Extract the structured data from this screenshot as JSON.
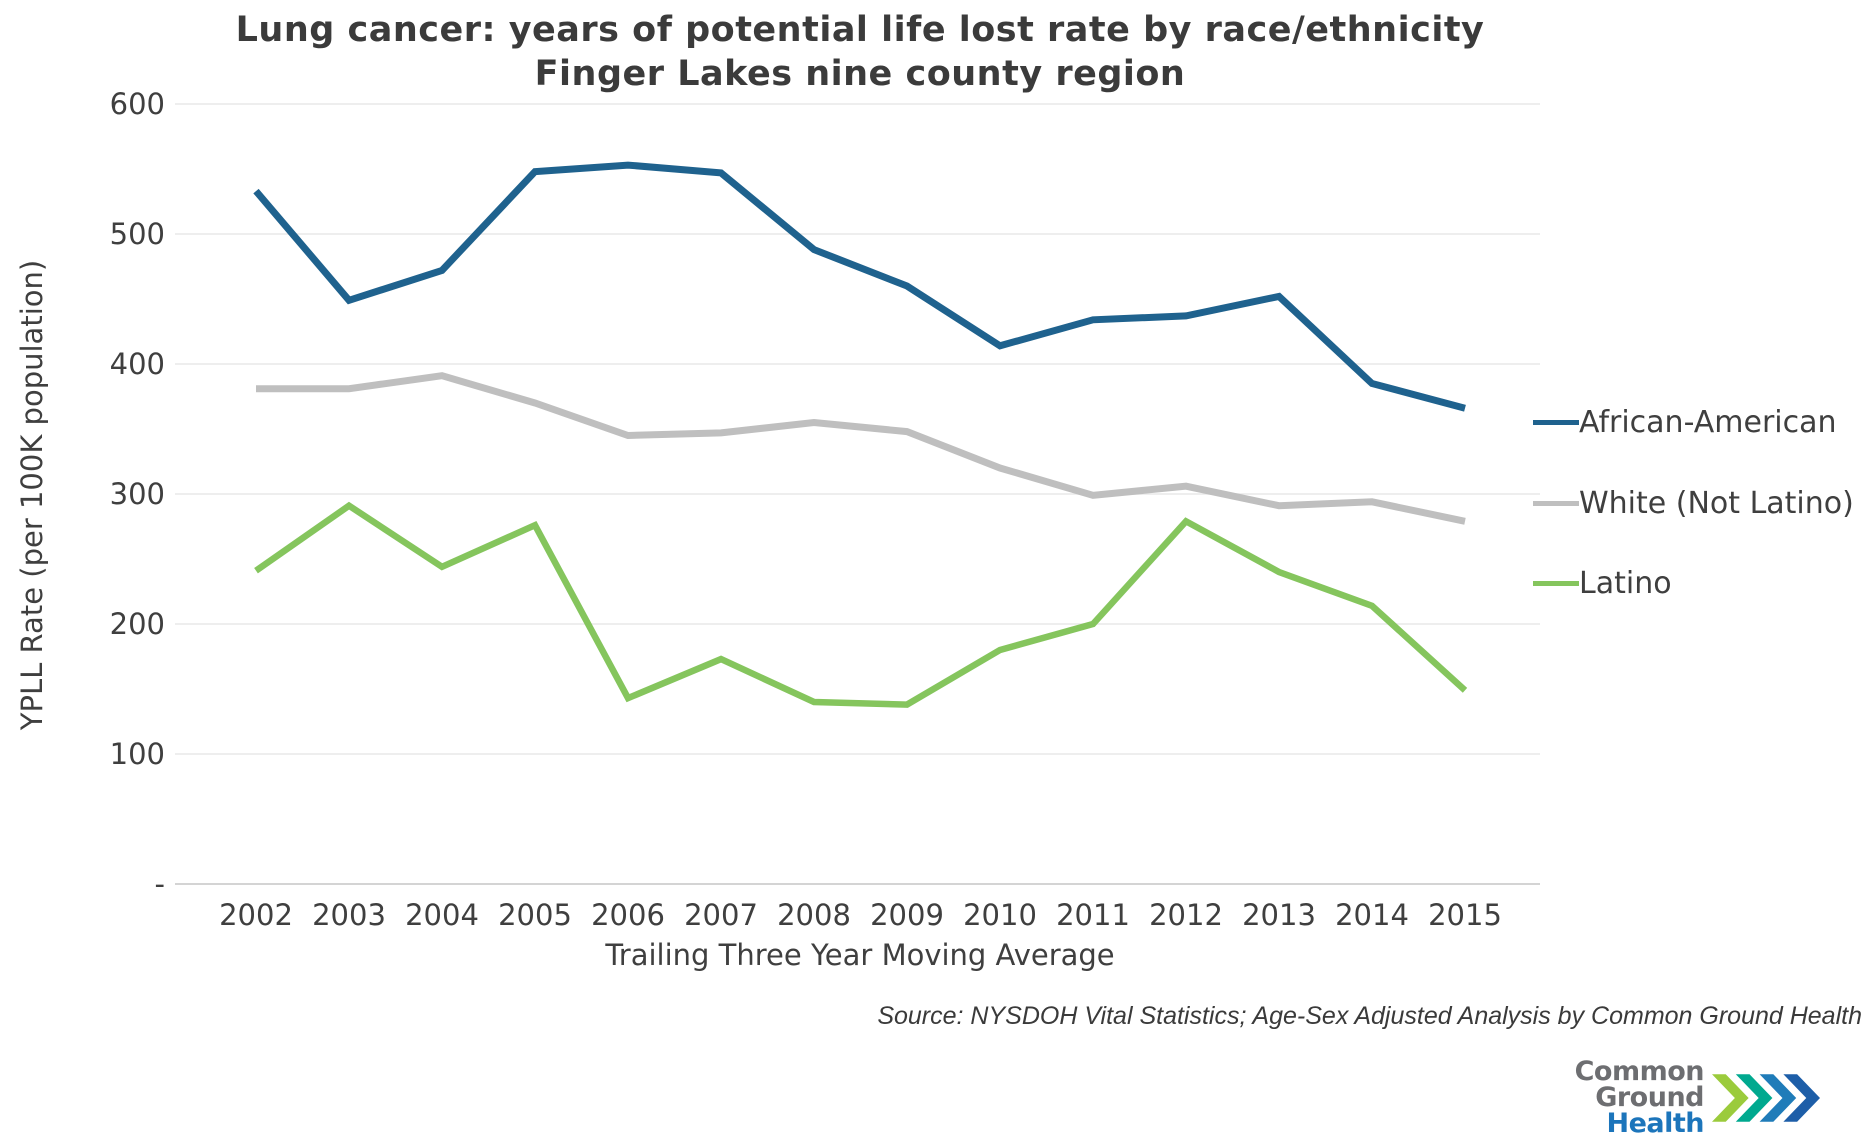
{
  "title": {
    "line1": "Lung cancer: years of potential life lost rate by race/ethnicity",
    "line2": "Finger Lakes nine county region"
  },
  "y_axis": {
    "title": "YPLL Rate (per 100K population)",
    "tick_labels": [
      "600",
      "500",
      "400",
      "300",
      "200",
      "100",
      "-"
    ],
    "tick_values": [
      600,
      500,
      400,
      300,
      200,
      100,
      0
    ]
  },
  "x_axis": {
    "title": "Trailing Three Year Moving Average"
  },
  "source_note": "Source: NYSDOH Vital Statistics; Age-Sex Adjusted Analysis by Common Ground Health",
  "logo": {
    "line1": "Common Ground",
    "line2": "Health",
    "chevron_colors": [
      "#9bcb3c",
      "#00a98f",
      "#1f7cb9",
      "#1d5ea8"
    ]
  },
  "colors": {
    "gridline": "#e8e8e8",
    "axis_line": "#c6c6c6",
    "text": "#3f3f3f",
    "title_text": "#3b3b3b"
  },
  "chart_data": {
    "type": "line",
    "title": "Lung cancer: years of potential life lost rate by race/ethnicity — Finger Lakes nine county region",
    "xlabel": "Trailing Three Year Moving Average",
    "ylabel": "YPLL Rate (per 100K population)",
    "ylim": [
      0,
      600
    ],
    "ytick_step": 100,
    "grid": true,
    "legend_position": "right",
    "categories": [
      2002,
      2003,
      2004,
      2005,
      2006,
      2007,
      2008,
      2009,
      2010,
      2011,
      2012,
      2013,
      2014,
      2015
    ],
    "series": [
      {
        "name": "African-American",
        "color": "#1f628e",
        "stroke_width": 7,
        "values": [
          533,
          449,
          472,
          548,
          553,
          547,
          488,
          460,
          414,
          434,
          437,
          452,
          385,
          366
        ]
      },
      {
        "name": "White (Not Latino)",
        "color": "#bfbfbf",
        "stroke_width": 7,
        "values": [
          381,
          381,
          391,
          370,
          345,
          347,
          355,
          348,
          320,
          299,
          306,
          291,
          294,
          279
        ]
      },
      {
        "name": "Latino",
        "color": "#85c55d",
        "stroke_width": 6.5,
        "values": [
          241,
          291,
          244,
          276,
          143,
          173,
          140,
          138,
          180,
          200,
          279,
          240,
          214,
          149
        ]
      }
    ]
  }
}
